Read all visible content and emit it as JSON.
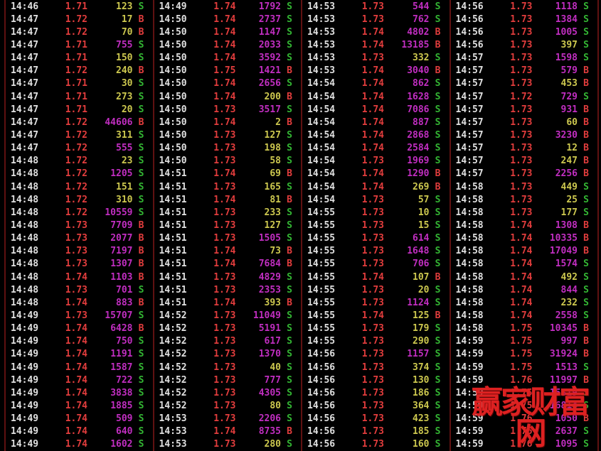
{
  "palette": {
    "background": "#000000",
    "time": "#e0e0e0",
    "price": "#e23d3d",
    "vol_small": "#cdc84f",
    "vol_large": "#c12ec1",
    "sell": "#33b533",
    "buy": "#e23d3d",
    "divider": "#5f1111",
    "watermark": "#dd2121"
  },
  "volume_large_threshold": 500,
  "watermark": {
    "text": "赢家财富网"
  },
  "panels": [
    {
      "rows": [
        [
          "14:46",
          "1.71",
          "123",
          "S"
        ],
        [
          "14:47",
          "1.72",
          "17",
          "B"
        ],
        [
          "14:47",
          "1.72",
          "70",
          "B"
        ],
        [
          "14:47",
          "1.71",
          "755",
          "S"
        ],
        [
          "14:47",
          "1.71",
          "150",
          "S"
        ],
        [
          "14:47",
          "1.72",
          "240",
          "B"
        ],
        [
          "14:47",
          "1.71",
          "30",
          "S"
        ],
        [
          "14:47",
          "1.71",
          "273",
          "S"
        ],
        [
          "14:47",
          "1.71",
          "20",
          "S"
        ],
        [
          "14:47",
          "1.72",
          "44606",
          "B"
        ],
        [
          "14:47",
          "1.72",
          "311",
          "S"
        ],
        [
          "14:47",
          "1.72",
          "555",
          "S"
        ],
        [
          "14:48",
          "1.72",
          "23",
          "S"
        ],
        [
          "14:48",
          "1.72",
          "1205",
          "S"
        ],
        [
          "14:48",
          "1.72",
          "151",
          "S"
        ],
        [
          "14:48",
          "1.72",
          "310",
          "S"
        ],
        [
          "14:48",
          "1.72",
          "10559",
          "S"
        ],
        [
          "14:48",
          "1.73",
          "7709",
          "B"
        ],
        [
          "14:48",
          "1.73",
          "2077",
          "B"
        ],
        [
          "14:48",
          "1.73",
          "7197",
          "B"
        ],
        [
          "14:48",
          "1.73",
          "1307",
          "B"
        ],
        [
          "14:48",
          "1.74",
          "1103",
          "B"
        ],
        [
          "14:48",
          "1.73",
          "701",
          "S"
        ],
        [
          "14:48",
          "1.74",
          "883",
          "B"
        ],
        [
          "14:49",
          "1.73",
          "15707",
          "S"
        ],
        [
          "14:49",
          "1.74",
          "6428",
          "B"
        ],
        [
          "14:49",
          "1.74",
          "750",
          "S"
        ],
        [
          "14:49",
          "1.74",
          "1191",
          "S"
        ],
        [
          "14:49",
          "1.74",
          "1587",
          "S"
        ],
        [
          "14:49",
          "1.74",
          "722",
          "S"
        ],
        [
          "14:49",
          "1.74",
          "3838",
          "S"
        ],
        [
          "14:49",
          "1.74",
          "1885",
          "S"
        ],
        [
          "14:49",
          "1.74",
          "509",
          "S"
        ],
        [
          "14:49",
          "1.74",
          "640",
          "S"
        ],
        [
          "14:49",
          "1.74",
          "1602",
          "S"
        ]
      ]
    },
    {
      "rows": [
        [
          "14:49",
          "1.74",
          "1792",
          "S"
        ],
        [
          "14:50",
          "1.74",
          "2737",
          "S"
        ],
        [
          "14:50",
          "1.74",
          "1147",
          "S"
        ],
        [
          "14:50",
          "1.74",
          "2033",
          "S"
        ],
        [
          "14:50",
          "1.74",
          "3592",
          "S"
        ],
        [
          "14:50",
          "1.75",
          "1421",
          "B"
        ],
        [
          "14:50",
          "1.74",
          "2656",
          "S"
        ],
        [
          "14:50",
          "1.74",
          "200",
          "B"
        ],
        [
          "14:50",
          "1.73",
          "3517",
          "S"
        ],
        [
          "14:50",
          "1.74",
          "2",
          "B"
        ],
        [
          "14:50",
          "1.73",
          "127",
          "S"
        ],
        [
          "14:50",
          "1.73",
          "198",
          "S"
        ],
        [
          "14:50",
          "1.73",
          "58",
          "S"
        ],
        [
          "14:51",
          "1.74",
          "69",
          "B"
        ],
        [
          "14:51",
          "1.73",
          "165",
          "S"
        ],
        [
          "14:51",
          "1.74",
          "81",
          "B"
        ],
        [
          "14:51",
          "1.73",
          "233",
          "S"
        ],
        [
          "14:51",
          "1.73",
          "127",
          "S"
        ],
        [
          "14:51",
          "1.73",
          "1505",
          "S"
        ],
        [
          "14:51",
          "1.74",
          "73",
          "B"
        ],
        [
          "14:51",
          "1.74",
          "7684",
          "B"
        ],
        [
          "14:51",
          "1.73",
          "4829",
          "S"
        ],
        [
          "14:51",
          "1.73",
          "2353",
          "S"
        ],
        [
          "14:51",
          "1.74",
          "393",
          "B"
        ],
        [
          "14:52",
          "1.73",
          "11049",
          "S"
        ],
        [
          "14:52",
          "1.73",
          "5191",
          "S"
        ],
        [
          "14:52",
          "1.73",
          "617",
          "S"
        ],
        [
          "14:52",
          "1.73",
          "1370",
          "S"
        ],
        [
          "14:52",
          "1.73",
          "40",
          "S"
        ],
        [
          "14:52",
          "1.73",
          "777",
          "S"
        ],
        [
          "14:52",
          "1.73",
          "4305",
          "S"
        ],
        [
          "14:52",
          "1.73",
          "80",
          "S"
        ],
        [
          "14:53",
          "1.73",
          "2206",
          "S"
        ],
        [
          "14:53",
          "1.74",
          "8735",
          "B"
        ],
        [
          "14:53",
          "1.73",
          "280",
          "S"
        ]
      ]
    },
    {
      "rows": [
        [
          "14:53",
          "1.73",
          "544",
          "S"
        ],
        [
          "14:53",
          "1.73",
          "762",
          "S"
        ],
        [
          "14:53",
          "1.74",
          "4802",
          "B"
        ],
        [
          "14:53",
          "1.74",
          "13185",
          "B"
        ],
        [
          "14:53",
          "1.73",
          "332",
          "S"
        ],
        [
          "14:53",
          "1.74",
          "3040",
          "B"
        ],
        [
          "14:54",
          "1.74",
          "862",
          "S"
        ],
        [
          "14:54",
          "1.74",
          "1628",
          "S"
        ],
        [
          "14:54",
          "1.74",
          "7086",
          "S"
        ],
        [
          "14:54",
          "1.74",
          "887",
          "S"
        ],
        [
          "14:54",
          "1.74",
          "2868",
          "S"
        ],
        [
          "14:54",
          "1.74",
          "2584",
          "S"
        ],
        [
          "14:54",
          "1.73",
          "1969",
          "S"
        ],
        [
          "14:54",
          "1.74",
          "1290",
          "B"
        ],
        [
          "14:54",
          "1.74",
          "269",
          "B"
        ],
        [
          "14:54",
          "1.73",
          "57",
          "S"
        ],
        [
          "14:55",
          "1.73",
          "10",
          "S"
        ],
        [
          "14:55",
          "1.73",
          "15",
          "S"
        ],
        [
          "14:55",
          "1.73",
          "614",
          "S"
        ],
        [
          "14:55",
          "1.73",
          "1648",
          "S"
        ],
        [
          "14:55",
          "1.73",
          "706",
          "S"
        ],
        [
          "14:55",
          "1.74",
          "107",
          "B"
        ],
        [
          "14:55",
          "1.73",
          "20",
          "S"
        ],
        [
          "14:55",
          "1.73",
          "1124",
          "S"
        ],
        [
          "14:55",
          "1.74",
          "125",
          "B"
        ],
        [
          "14:55",
          "1.73",
          "179",
          "S"
        ],
        [
          "14:55",
          "1.73",
          "290",
          "S"
        ],
        [
          "14:56",
          "1.73",
          "1157",
          "S"
        ],
        [
          "14:56",
          "1.73",
          "374",
          "S"
        ],
        [
          "14:56",
          "1.73",
          "130",
          "S"
        ],
        [
          "14:56",
          "1.73",
          "186",
          "S"
        ],
        [
          "14:56",
          "1.73",
          "364",
          "S"
        ],
        [
          "14:56",
          "1.73",
          "423",
          "S"
        ],
        [
          "14:56",
          "1.73",
          "185",
          "S"
        ],
        [
          "14:56",
          "1.73",
          "160",
          "S"
        ]
      ]
    },
    {
      "rows": [
        [
          "14:56",
          "1.73",
          "1118",
          "S"
        ],
        [
          "14:56",
          "1.73",
          "1384",
          "S"
        ],
        [
          "14:56",
          "1.73",
          "1005",
          "S"
        ],
        [
          "14:56",
          "1.73",
          "397",
          "S"
        ],
        [
          "14:57",
          "1.73",
          "1598",
          "S"
        ],
        [
          "14:57",
          "1.73",
          "579",
          "B"
        ],
        [
          "14:57",
          "1.73",
          "453",
          "B"
        ],
        [
          "14:57",
          "1.72",
          "729",
          "S"
        ],
        [
          "14:57",
          "1.73",
          "931",
          "B"
        ],
        [
          "14:57",
          "1.73",
          "60",
          "B"
        ],
        [
          "14:57",
          "1.73",
          "3230",
          "B"
        ],
        [
          "14:57",
          "1.73",
          "12",
          "B"
        ],
        [
          "14:57",
          "1.73",
          "247",
          "B"
        ],
        [
          "14:57",
          "1.73",
          "2256",
          "B"
        ],
        [
          "14:58",
          "1.73",
          "449",
          "S"
        ],
        [
          "14:58",
          "1.73",
          "25",
          "S"
        ],
        [
          "14:58",
          "1.73",
          "177",
          "S"
        ],
        [
          "14:58",
          "1.74",
          "1308",
          "B"
        ],
        [
          "14:58",
          "1.74",
          "10335",
          "B"
        ],
        [
          "14:58",
          "1.74",
          "17049",
          "B"
        ],
        [
          "14:58",
          "1.74",
          "1574",
          "S"
        ],
        [
          "14:58",
          "1.74",
          "492",
          "S"
        ],
        [
          "14:58",
          "1.74",
          "844",
          "S"
        ],
        [
          "14:58",
          "1.74",
          "232",
          "S"
        ],
        [
          "14:58",
          "1.74",
          "2558",
          "S"
        ],
        [
          "14:58",
          "1.75",
          "10345",
          "B"
        ],
        [
          "14:59",
          "1.75",
          "997",
          "B"
        ],
        [
          "14:59",
          "1.75",
          "31924",
          "B"
        ],
        [
          "14:59",
          "1.75",
          "1513",
          "S"
        ],
        [
          "14:59",
          "1.76",
          "11997",
          "B"
        ],
        [
          "14:59",
          "1.75",
          "15319",
          "S"
        ],
        [
          "14:59",
          "1.75",
          "16814",
          "S"
        ],
        [
          "14:59",
          "1.76",
          "1050",
          "B"
        ],
        [
          "14:59",
          "1.76",
          "2637",
          "S"
        ],
        [
          "14:59",
          "1.76",
          "1095",
          "S"
        ]
      ]
    }
  ]
}
